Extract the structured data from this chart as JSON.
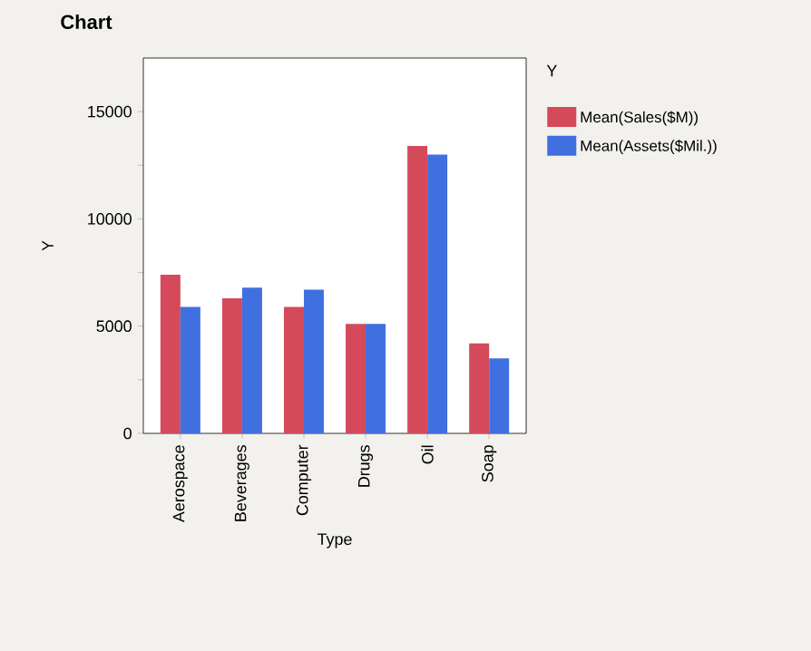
{
  "chart_data": {
    "type": "bar",
    "title": "Chart",
    "xlabel": "Type",
    "ylabel": "Y",
    "legend_title": "Y",
    "legend": "right",
    "categories": [
      "Aerospace",
      "Beverages",
      "Computer",
      "Drugs",
      "Oil",
      "Soap"
    ],
    "series": [
      {
        "name": "Mean(Sales($M))",
        "color": "#d44a5a",
        "values": [
          7400,
          6300,
          5900,
          5100,
          13400,
          4200
        ]
      },
      {
        "name": "Mean(Assets($Mil.))",
        "color": "#4070e0",
        "values": [
          5900,
          6800,
          6700,
          5100,
          13000,
          3500
        ]
      }
    ],
    "ylim": [
      0,
      17500
    ],
    "yticks": [
      0,
      {
        "value": 2500,
        "label": null
      },
      5000,
      {
        "value": 7500,
        "label": null
      },
      10000,
      {
        "value": 12500,
        "label": null
      },
      15000
    ]
  }
}
